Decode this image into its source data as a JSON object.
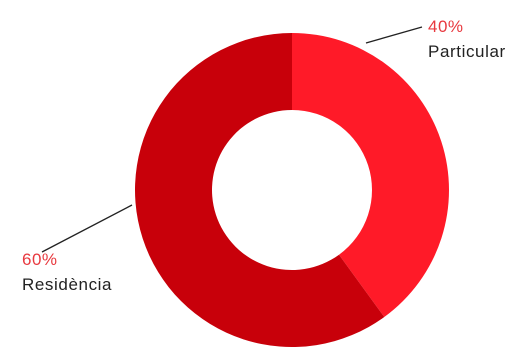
{
  "chart_data": {
    "type": "pie",
    "variant": "donut",
    "slices": [
      {
        "label": "Particular",
        "value": 40,
        "display": "40%",
        "color": "#ff1a28"
      },
      {
        "label": "Residència",
        "value": 60,
        "display": "60%",
        "color": "#c8000a"
      }
    ],
    "value_text_color": "#e8393f",
    "legend": "none",
    "title": ""
  }
}
